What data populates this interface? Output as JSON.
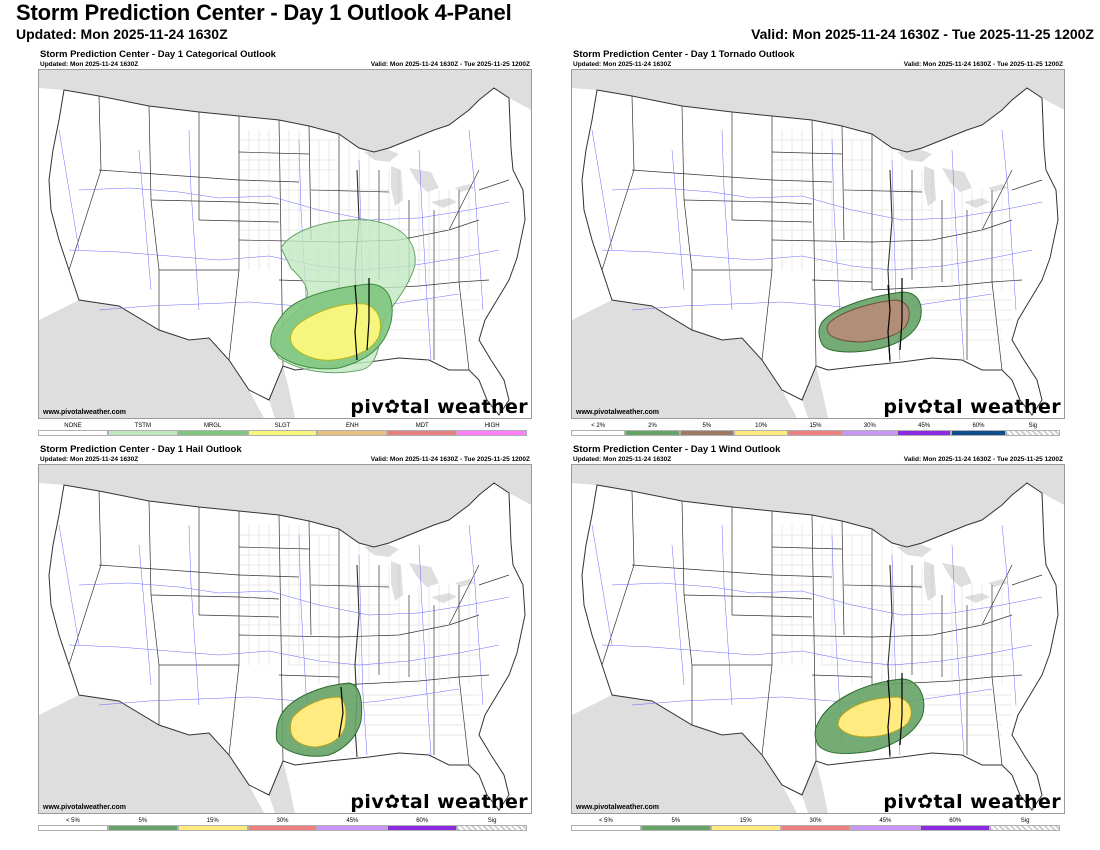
{
  "header": {
    "title": "Storm Prediction Center - Day 1 Outlook 4-Panel",
    "updated": "Updated: Mon 2025-11-24 1630Z",
    "valid": "Valid: Mon 2025-11-24 1630Z - Tue 2025-11-25 1200Z"
  },
  "panels": [
    {
      "title": "Storm Prediction Center - Day 1 Categorical Outlook",
      "updated": "Updated: Mon 2025-11-24 1630Z",
      "valid": "Valid: Mon 2025-11-24 1630Z - Tue 2025-11-25 1200Z",
      "site": "www.pivotalweather.com",
      "brand": "piv✿tal weather",
      "legend": [
        {
          "label": "NONE",
          "color": "#ffffff"
        },
        {
          "label": "TSTM",
          "color": "#c0e8c0"
        },
        {
          "label": "MRGL",
          "color": "#7fc57f"
        },
        {
          "label": "SLGT",
          "color": "#f6f67f"
        },
        {
          "label": "ENH",
          "color": "#e6c27f"
        },
        {
          "label": "MDT",
          "color": "#e67f7f"
        },
        {
          "label": "HIGH",
          "color": "#ff7fff"
        }
      ]
    },
    {
      "title": "Storm Prediction Center - Day 1 Tornado Outlook",
      "updated": "Updated: Mon 2025-11-24 1630Z",
      "valid": "Valid: Mon 2025-11-24 1630Z - Tue 2025-11-25 1200Z",
      "site": "www.pivotalweather.com",
      "brand": "piv✿tal weather",
      "legend": [
        {
          "label": "< 2%",
          "color": "#ffffff"
        },
        {
          "label": "2%",
          "color": "#66a366"
        },
        {
          "label": "5%",
          "color": "#9d7a63"
        },
        {
          "label": "10%",
          "color": "#ffeb80"
        },
        {
          "label": "15%",
          "color": "#f08080"
        },
        {
          "label": "30%",
          "color": "#c896f7"
        },
        {
          "label": "45%",
          "color": "#8a2be2"
        },
        {
          "label": "60%",
          "color": "#104e8b"
        },
        {
          "label": "Sig",
          "color": "hatch"
        }
      ]
    },
    {
      "title": "Storm Prediction Center - Day 1 Hail Outlook",
      "updated": "Updated: Mon 2025-11-24 1630Z",
      "valid": "Valid: Mon 2025-11-24 1630Z - Tue 2025-11-25 1200Z",
      "site": "www.pivotalweather.com",
      "brand": "piv✿tal weather",
      "legend": [
        {
          "label": "< 5%",
          "color": "#ffffff"
        },
        {
          "label": "5%",
          "color": "#66a366"
        },
        {
          "label": "15%",
          "color": "#ffeb80"
        },
        {
          "label": "30%",
          "color": "#f08080"
        },
        {
          "label": "45%",
          "color": "#c896f7"
        },
        {
          "label": "60%",
          "color": "#8a2be2"
        },
        {
          "label": "Sig",
          "color": "hatch"
        }
      ]
    },
    {
      "title": "Storm Prediction Center - Day 1 Wind Outlook",
      "updated": "Updated: Mon 2025-11-24 1630Z",
      "valid": "Valid: Mon 2025-11-24 1630Z - Tue 2025-11-25 1200Z",
      "site": "www.pivotalweather.com",
      "brand": "piv✿tal weather",
      "legend": [
        {
          "label": "< 5%",
          "color": "#ffffff"
        },
        {
          "label": "5%",
          "color": "#66a366"
        },
        {
          "label": "15%",
          "color": "#ffeb80"
        },
        {
          "label": "30%",
          "color": "#f08080"
        },
        {
          "label": "45%",
          "color": "#c896f7"
        },
        {
          "label": "60%",
          "color": "#8a2be2"
        },
        {
          "label": "Sig",
          "color": "hatch"
        }
      ]
    }
  ]
}
